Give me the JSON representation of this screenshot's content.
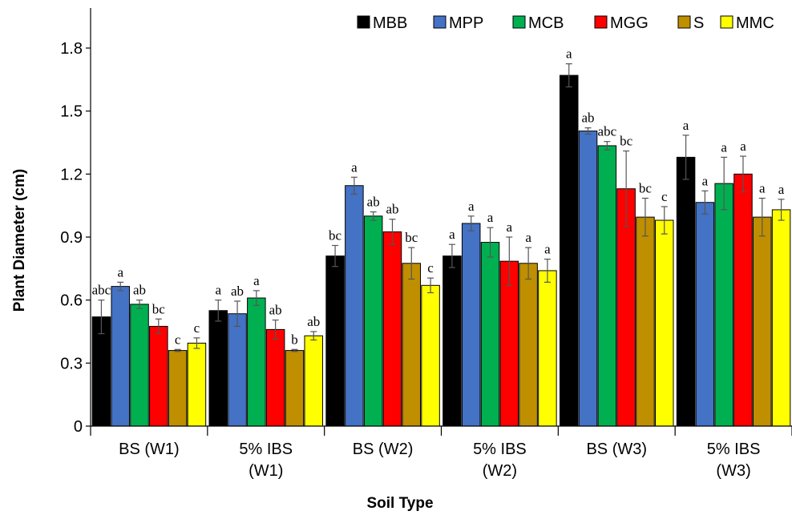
{
  "chart_data": {
    "type": "bar",
    "title": "",
    "xlabel": "Soil Type",
    "ylabel": "Plant Diameter (cm)",
    "ylim": [
      0,
      2.0
    ],
    "yticks": [
      "0",
      "0.3",
      "0.6",
      "0.9",
      "1.2",
      "1.5",
      "1.8"
    ],
    "ytick_values": [
      0,
      0.3,
      0.6,
      0.9,
      1.2,
      1.5,
      1.8
    ],
    "grid": false,
    "legend_position": "top-right",
    "categories": [
      [
        "BS (W1)"
      ],
      [
        "5% IBS",
        "(W1)"
      ],
      [
        "BS (W2)"
      ],
      [
        "5% IBS",
        "(W2)"
      ],
      [
        "BS (W3)"
      ],
      [
        "5% IBS",
        "(W3)"
      ]
    ],
    "series": [
      {
        "name": "MBB",
        "color": "#000000",
        "values": [
          0.52,
          0.55,
          0.81,
          0.81,
          1.67,
          1.28
        ],
        "errors": [
          0.08,
          0.05,
          0.05,
          0.055,
          0.055,
          0.105
        ],
        "labels": [
          "abc",
          "a",
          "bc",
          "a",
          "a",
          "a"
        ]
      },
      {
        "name": "MPP",
        "color": "#4472C4",
        "values": [
          0.665,
          0.535,
          1.145,
          0.965,
          1.405,
          1.065
        ],
        "errors": [
          0.02,
          0.06,
          0.04,
          0.035,
          0.015,
          0.055
        ],
        "labels": [
          "a",
          "ab",
          "a",
          "a",
          "ab",
          "a"
        ]
      },
      {
        "name": "MCB",
        "color": "#00B050",
        "values": [
          0.58,
          0.61,
          1.0,
          0.875,
          1.335,
          1.155
        ],
        "errors": [
          0.02,
          0.035,
          0.02,
          0.07,
          0.02,
          0.125
        ],
        "labels": [
          "ab",
          "a",
          "ab",
          "a",
          "abc",
          "a"
        ]
      },
      {
        "name": "MGG",
        "color": "#FF0000",
        "values": [
          0.475,
          0.46,
          0.925,
          0.785,
          1.13,
          1.2
        ],
        "errors": [
          0.035,
          0.045,
          0.06,
          0.115,
          0.18,
          0.085
        ],
        "labels": [
          "bc",
          "ab",
          "ab",
          "a",
          "bc",
          "a"
        ]
      },
      {
        "name": "S",
        "color": "#BF8F00",
        "values": [
          0.36,
          0.36,
          0.775,
          0.775,
          0.995,
          0.995
        ],
        "errors": [
          0.005,
          0.005,
          0.075,
          0.075,
          0.09,
          0.09
        ],
        "labels": [
          "c",
          "b",
          "bc",
          "a",
          "bc",
          "a"
        ]
      },
      {
        "name": "MMC",
        "color": "#FFFF00",
        "values": [
          0.395,
          0.43,
          0.67,
          0.74,
          0.98,
          1.03
        ],
        "errors": [
          0.025,
          0.02,
          0.035,
          0.055,
          0.065,
          0.05
        ],
        "labels": [
          "c",
          "ab",
          "c",
          "a",
          "c",
          "a"
        ]
      }
    ]
  }
}
